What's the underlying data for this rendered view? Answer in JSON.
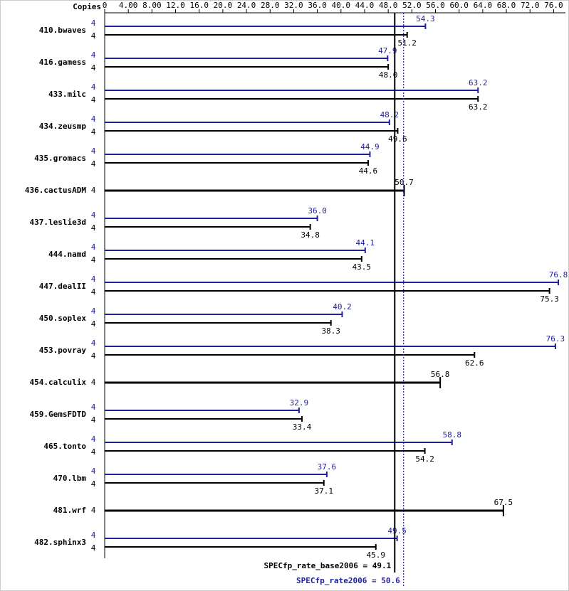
{
  "chart_data": {
    "type": "bar",
    "orientation": "horizontal",
    "copies_label": "Copies",
    "categories": [
      "410.bwaves",
      "416.gamess",
      "433.milc",
      "434.zeusmp",
      "435.gromacs",
      "436.cactusADM",
      "437.leslie3d",
      "444.namd",
      "447.dealII",
      "450.soplex",
      "453.povray",
      "454.calculix",
      "459.GemsFDTD",
      "465.tonto",
      "470.lbm",
      "481.wrf",
      "482.sphinx3"
    ],
    "series": [
      {
        "color": "#1f1f9a",
        "copies": [
          4,
          4,
          4,
          4,
          4,
          null,
          4,
          4,
          4,
          4,
          4,
          null,
          4,
          4,
          4,
          null,
          4
        ],
        "values": [
          54.3,
          47.9,
          63.2,
          48.2,
          44.9,
          null,
          36.0,
          44.1,
          76.8,
          40.2,
          76.3,
          null,
          32.9,
          58.8,
          37.6,
          null,
          49.5
        ],
        "value_labels": [
          "54.3",
          "47.9",
          "63.2",
          "48.2",
          "44.9",
          null,
          "36.0",
          "44.1",
          "76.8",
          "40.2",
          "76.3",
          null,
          "32.9",
          "58.8",
          "37.6",
          null,
          "49.5"
        ]
      },
      {
        "color": "#000000",
        "copies": [
          4,
          4,
          4,
          4,
          4,
          4,
          4,
          4,
          4,
          4,
          4,
          4,
          4,
          4,
          4,
          4,
          4
        ],
        "values": [
          51.2,
          48.0,
          63.2,
          49.6,
          44.6,
          50.7,
          34.8,
          43.5,
          75.3,
          38.3,
          62.6,
          56.8,
          33.4,
          54.2,
          37.1,
          67.5,
          45.9
        ],
        "value_labels": [
          "51.2",
          "48.0",
          "63.2",
          "49.6",
          "44.6",
          "50.7",
          "34.8",
          "43.5",
          "75.3",
          "38.3",
          "62.6",
          "56.8",
          "33.4",
          "54.2",
          "37.1",
          "67.5",
          "45.9"
        ]
      }
    ],
    "xlim": [
      0,
      78
    ],
    "xticks": [
      0,
      {
        "value": 4,
        "label": "4.00"
      },
      {
        "value": 8,
        "label": "8.00"
      },
      {
        "value": 12,
        "label": "12.0"
      },
      {
        "value": 16,
        "label": "16.0"
      },
      {
        "value": 20,
        "label": "20.0"
      },
      {
        "value": 24,
        "label": "24.0"
      },
      {
        "value": 28,
        "label": "28.0"
      },
      {
        "value": 32,
        "label": "32.0"
      },
      {
        "value": 36,
        "label": "36.0"
      },
      {
        "value": 40,
        "label": "40.0"
      },
      {
        "value": 44,
        "label": "44.0"
      },
      {
        "value": 48,
        "label": "48.0"
      },
      {
        "value": 52,
        "label": "52.0"
      },
      {
        "value": 56,
        "label": "56.0"
      },
      {
        "value": 60,
        "label": "60.0"
      },
      {
        "value": 64,
        "label": "64.0"
      },
      {
        "value": 68,
        "label": "68.0"
      },
      {
        "value": 72,
        "label": "72.0"
      },
      {
        "value": 76,
        "label": "76.0"
      }
    ],
    "reference_lines": [
      {
        "value": 49.1,
        "label": "SPECfp_rate_base2006 = 49.1",
        "color": "#000000",
        "dashed": false
      },
      {
        "value": 50.6,
        "label": "SPECfp_rate2006 = 50.6",
        "color": "#1f1f9a",
        "dashed": true
      }
    ]
  }
}
